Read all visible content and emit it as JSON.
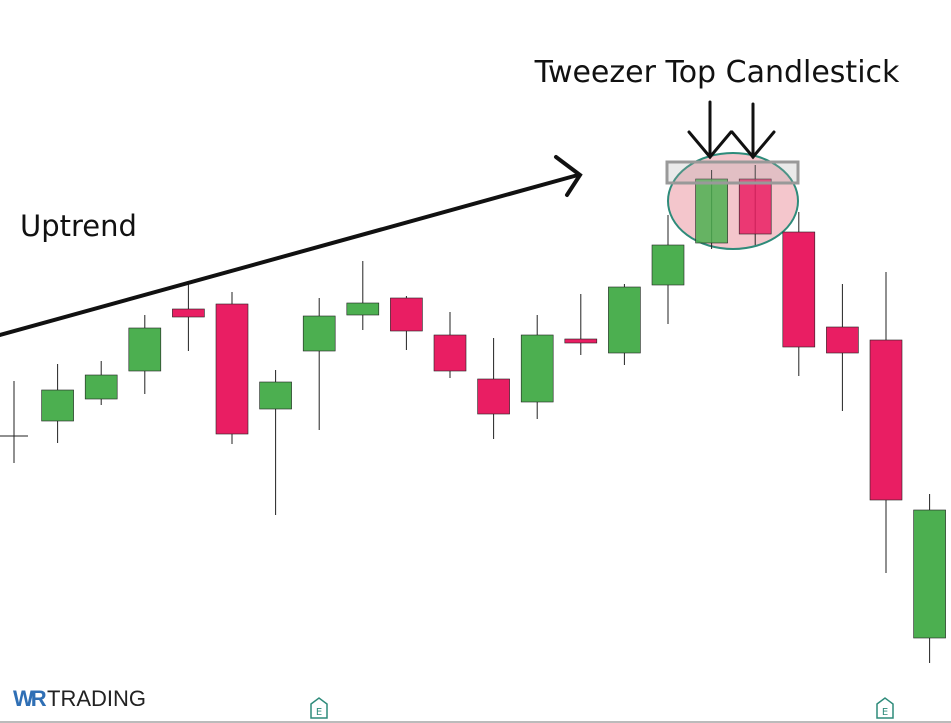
{
  "chart_data": {
    "type": "candlestick",
    "ylim": [
      0,
      723
    ],
    "grid": false,
    "candles": [
      {
        "direction": "neutral",
        "open": 287,
        "close": 287,
        "high": 342,
        "low": 260
      },
      {
        "direction": "up",
        "open": 302,
        "close": 333,
        "high": 359,
        "low": 280
      },
      {
        "direction": "up",
        "open": 324,
        "close": 348,
        "high": 362,
        "low": 318
      },
      {
        "direction": "up",
        "open": 352,
        "close": 395,
        "high": 408,
        "low": 329
      },
      {
        "direction": "down",
        "open": 414,
        "close": 406,
        "high": 441,
        "low": 372
      },
      {
        "direction": "down",
        "open": 419,
        "close": 289,
        "high": 431,
        "low": 279
      },
      {
        "direction": "up",
        "open": 314,
        "close": 341,
        "high": 353,
        "low": 208
      },
      {
        "direction": "up",
        "open": 372,
        "close": 407,
        "high": 425,
        "low": 293
      },
      {
        "direction": "up",
        "open": 408,
        "close": 420,
        "high": 462,
        "low": 393
      },
      {
        "direction": "down",
        "open": 425,
        "close": 392,
        "high": 427,
        "low": 373
      },
      {
        "direction": "down",
        "open": 388,
        "close": 352,
        "high": 411,
        "low": 345
      },
      {
        "direction": "down",
        "open": 344,
        "close": 309,
        "high": 385,
        "low": 284
      },
      {
        "direction": "up",
        "open": 321,
        "close": 388,
        "high": 408,
        "low": 304
      },
      {
        "direction": "down",
        "open": 384,
        "close": 380,
        "high": 429,
        "low": 368
      },
      {
        "direction": "up",
        "open": 370,
        "close": 436,
        "high": 439,
        "low": 358
      },
      {
        "direction": "up",
        "open": 438,
        "close": 478,
        "high": 508,
        "low": 399
      },
      {
        "direction": "up",
        "open": 480,
        "close": 544,
        "high": 553,
        "low": 474
      },
      {
        "direction": "down",
        "open": 544,
        "close": 489,
        "high": 558,
        "low": 478
      },
      {
        "direction": "down",
        "open": 491,
        "close": 376,
        "high": 511,
        "low": 347
      },
      {
        "direction": "down",
        "open": 396,
        "close": 370,
        "high": 439,
        "low": 312
      },
      {
        "direction": "down",
        "open": 383,
        "close": 223,
        "high": 451,
        "low": 150
      },
      {
        "direction": "up",
        "open": 85,
        "close": 213,
        "high": 229,
        "low": 60
      }
    ],
    "annotations": {
      "title": "Tweezer Top Candlestick",
      "trend_label": "Uptrend",
      "pattern_candles": [
        16,
        17
      ]
    }
  },
  "brand": {
    "logo_mark": "WR",
    "logo_text": "TRADING"
  },
  "colors": {
    "up": "#4caf50",
    "down": "#e91e63",
    "wick": "#222222",
    "highlight_fill": "#f4c6cc",
    "highlight_stroke": "#2e8b7a",
    "resistance_box": "#999999",
    "brand_blue": "#2f6fb5",
    "earnings_icon": "#2e8b7a"
  },
  "icons": {
    "earnings": "earnings-icon",
    "arrow": "down-arrow-icon"
  },
  "markers": [
    {
      "icon": "earnings-icon",
      "label": "E"
    },
    {
      "icon": "earnings-icon",
      "label": "E"
    }
  ]
}
